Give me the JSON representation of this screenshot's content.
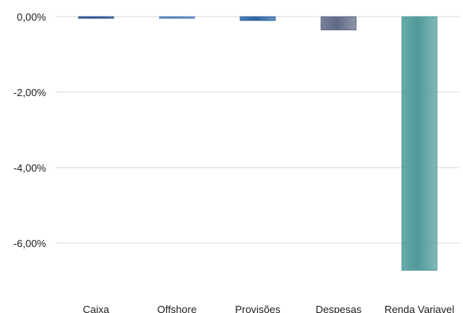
{
  "chart_data": {
    "type": "bar",
    "title": "",
    "xlabel": "",
    "ylabel": "",
    "categories": [
      "Caixa",
      "Offshore",
      "Provisões",
      "Despesas",
      "Renda Variavel"
    ],
    "values": [
      -0.04,
      -0.04,
      -0.1,
      -0.35,
      -6.72
    ],
    "ylim": [
      -7.0,
      0.0
    ],
    "yticks": [
      0,
      -2,
      -4,
      -6
    ],
    "ytick_labels": [
      "0,00%",
      "-2,00%",
      "-4,00%",
      "-6,00%"
    ],
    "grid": true,
    "legend": "none",
    "colors": [
      "#2f4f8f",
      "#4f80b6",
      "#2f65a3",
      "#5f6a86",
      "#4f9a9a"
    ]
  }
}
